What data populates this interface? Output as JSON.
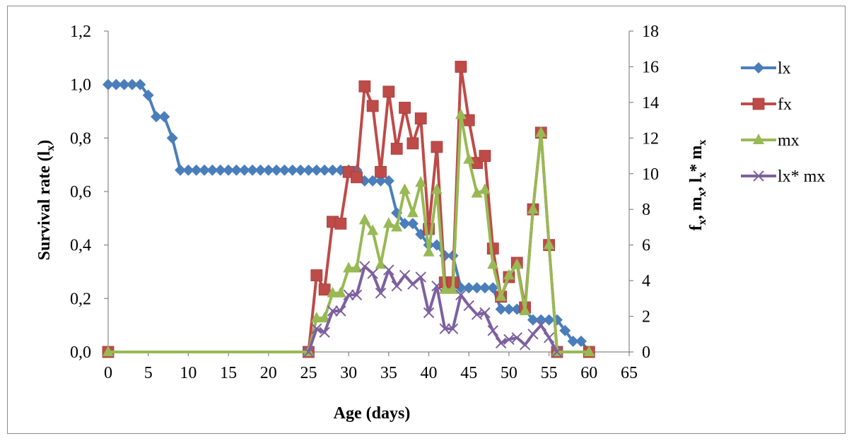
{
  "chart_data": {
    "type": "line",
    "xlabel": "Age (days)",
    "ylabel": "Survival rate (l",
    "ylabel_sub": "x",
    "ylabel_close": ")",
    "y2label_parts": [
      {
        "t": "f"
      },
      {
        "t": "x",
        "sub": true
      },
      {
        "t": ", m"
      },
      {
        "t": "x",
        "sub": true
      },
      {
        "t": ", l"
      },
      {
        "t": "x",
        "sub": true
      },
      {
        "t": "* m"
      },
      {
        "t": "x",
        "sub": true
      }
    ],
    "xlim": [
      0,
      65
    ],
    "ylim": [
      0,
      1.2
    ],
    "y2lim": [
      0,
      18
    ],
    "x_ticks": [
      "0",
      "5",
      "10",
      "15",
      "20",
      "25",
      "30",
      "35",
      "40",
      "45",
      "50",
      "55",
      "60",
      "65"
    ],
    "y_ticks": [
      "0,0",
      "0,2",
      "0,4",
      "0,6",
      "0,8",
      "1,0",
      "1,2"
    ],
    "y2_ticks": [
      "0",
      "2",
      "4",
      "6",
      "8",
      "10",
      "12",
      "14",
      "16",
      "18"
    ],
    "legend_position": "right",
    "series": [
      {
        "name": "lx",
        "axis": "left",
        "color": "#4a7ebb",
        "marker": "diamond",
        "x": [
          0,
          1,
          2,
          3,
          4,
          5,
          6,
          7,
          8,
          9,
          10,
          11,
          12,
          13,
          14,
          15,
          16,
          17,
          18,
          19,
          20,
          21,
          22,
          23,
          24,
          25,
          26,
          27,
          28,
          29,
          30,
          31,
          32,
          33,
          34,
          35,
          36,
          37,
          38,
          39,
          40,
          41,
          42,
          43,
          44,
          45,
          46,
          47,
          48,
          49,
          50,
          51,
          52,
          53,
          54,
          55,
          56,
          57,
          58,
          59,
          60
        ],
        "values": [
          1.0,
          1.0,
          1.0,
          1.0,
          1.0,
          0.96,
          0.88,
          0.88,
          0.8,
          0.68,
          0.68,
          0.68,
          0.68,
          0.68,
          0.68,
          0.68,
          0.68,
          0.68,
          0.68,
          0.68,
          0.68,
          0.68,
          0.68,
          0.68,
          0.68,
          0.68,
          0.68,
          0.68,
          0.68,
          0.68,
          0.68,
          0.68,
          0.64,
          0.64,
          0.64,
          0.64,
          0.52,
          0.48,
          0.48,
          0.44,
          0.4,
          0.4,
          0.36,
          0.36,
          0.24,
          0.24,
          0.24,
          0.24,
          0.24,
          0.16,
          0.16,
          0.16,
          0.16,
          0.12,
          0.12,
          0.12,
          0.12,
          0.08,
          0.04,
          0.04,
          0.0
        ]
      },
      {
        "name": "fx",
        "axis": "right",
        "color": "#be4b48",
        "marker": "square",
        "x": [
          0,
          25,
          26,
          27,
          28,
          29,
          30,
          31,
          32,
          33,
          34,
          35,
          36,
          37,
          38,
          39,
          40,
          41,
          42,
          43,
          44,
          45,
          46,
          47,
          48,
          49,
          50,
          51,
          52,
          53,
          54,
          55,
          56,
          60
        ],
        "values": [
          0,
          0,
          4.3,
          3.5,
          7.3,
          7.2,
          10.1,
          9.8,
          14.9,
          13.8,
          10.1,
          14.6,
          11.4,
          13.7,
          11.7,
          13.1,
          6.9,
          11.5,
          3.9,
          3.9,
          16.0,
          13.0,
          10.6,
          11.0,
          5.8,
          3.1,
          4.2,
          5.0,
          2.5,
          8.0,
          12.3,
          6.0,
          0,
          0
        ]
      },
      {
        "name": "mx",
        "axis": "right",
        "color": "#98b954",
        "marker": "triangle",
        "x": [
          0,
          25,
          26,
          27,
          28,
          29,
          30,
          31,
          32,
          33,
          34,
          35,
          36,
          37,
          38,
          39,
          40,
          41,
          42,
          43,
          44,
          45,
          46,
          47,
          48,
          49,
          50,
          51,
          52,
          53,
          54,
          55,
          56,
          60
        ],
        "values": [
          0,
          0,
          1.9,
          1.9,
          3.3,
          3.3,
          4.7,
          4.7,
          7.4,
          6.8,
          4.9,
          7.2,
          7.0,
          9.1,
          7.8,
          9.5,
          5.6,
          9.1,
          3.5,
          3.5,
          13.3,
          10.8,
          8.9,
          9.1,
          4.9,
          3.1,
          4.3,
          4.9,
          2.3,
          8.0,
          12.3,
          6.0,
          0,
          0
        ]
      },
      {
        "name": "lx* mx",
        "axis": "right",
        "color": "#7d60a0",
        "marker": "x",
        "x": [
          25,
          26,
          27,
          28,
          29,
          30,
          31,
          32,
          33,
          34,
          35,
          36,
          37,
          38,
          39,
          40,
          41,
          42,
          43,
          44,
          45,
          46,
          47,
          48,
          49,
          50,
          51,
          52,
          53,
          54,
          55,
          56
        ],
        "values": [
          0,
          1.3,
          1.1,
          2.3,
          2.3,
          3.2,
          3.2,
          4.8,
          4.4,
          3.3,
          4.6,
          3.7,
          4.3,
          3.8,
          4.2,
          2.2,
          3.7,
          1.3,
          1.3,
          3.2,
          2.6,
          2.1,
          2.2,
          1.2,
          0.5,
          0.7,
          0.8,
          0.4,
          1.0,
          1.5,
          0.8,
          0
        ]
      }
    ]
  }
}
